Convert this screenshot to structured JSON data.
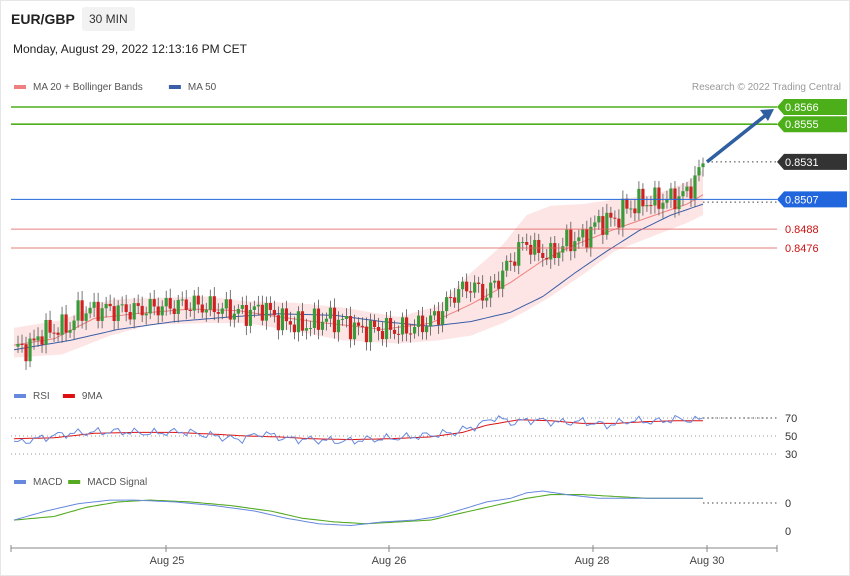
{
  "header": {
    "symbol": "EUR/GBP",
    "timeframe": "30 MIN",
    "datetime": "Monday, August 29, 2022 12:13:16 PM CET",
    "credit": "Research © 2022 Trading Central"
  },
  "colors": {
    "ma20": "#f08080",
    "bollinger_fill": "#fde0e0",
    "ma50": "#3a5ea8",
    "candle_up": "#3a9a3a",
    "candle_down": "#cc2222",
    "resistance": "#4caf1a",
    "pivot": "#2266dd",
    "support": "#e06060",
    "current": "#333333",
    "arrow": "#2f5fa0",
    "rsi": "#6688dd",
    "rsi_ma": "#dd1111",
    "macd": "#6688dd",
    "macd_signal": "#55aa22"
  },
  "chart_data": [
    {
      "type": "candlestick",
      "panel": "price",
      "legend": [
        {
          "name": "MA 20 + Bollinger Bands",
          "color": "#f08080"
        },
        {
          "name": "MA 50",
          "color": "#3a5ea8"
        }
      ],
      "x_labels": [
        "Aug 25",
        "Aug 26",
        "Aug 28",
        "Aug 30"
      ],
      "levels": [
        {
          "value": 0.8566,
          "label": "0.8566",
          "kind": "resistance"
        },
        {
          "value": 0.8555,
          "label": "0.8555",
          "kind": "resistance"
        },
        {
          "value": 0.8531,
          "label": "0.8531",
          "kind": "current"
        },
        {
          "value": 0.8507,
          "label": "0.8507",
          "kind": "pivot"
        },
        {
          "value": 0.8488,
          "label": "0.8488",
          "kind": "support"
        },
        {
          "value": 0.8476,
          "label": "0.8476",
          "kind": "support"
        }
      ],
      "ylim": [
        0.84,
        0.8566
      ],
      "close_path": [
        [
          0,
          0.8413
        ],
        [
          4,
          0.8412
        ],
        [
          6,
          0.842
        ],
        [
          10,
          0.8424
        ],
        [
          14,
          0.8426
        ],
        [
          16,
          0.8435
        ],
        [
          22,
          0.8437
        ],
        [
          30,
          0.8436
        ],
        [
          35,
          0.8438
        ],
        [
          44,
          0.844
        ],
        [
          52,
          0.8437
        ],
        [
          58,
          0.8434
        ],
        [
          62,
          0.8438
        ],
        [
          66,
          0.8431
        ],
        [
          72,
          0.8426
        ],
        [
          78,
          0.8431
        ],
        [
          82,
          0.8429
        ],
        [
          86,
          0.8424
        ],
        [
          94,
          0.8424
        ],
        [
          98,
          0.8424
        ],
        [
          102,
          0.8427
        ],
        [
          106,
          0.8433
        ],
        [
          110,
          0.8447
        ],
        [
          114,
          0.8452
        ],
        [
          118,
          0.8446
        ],
        [
          122,
          0.846
        ],
        [
          126,
          0.8475
        ],
        [
          128,
          0.848
        ],
        [
          130,
          0.8474
        ],
        [
          134,
          0.8471
        ],
        [
          138,
          0.848
        ],
        [
          142,
          0.8482
        ],
        [
          146,
          0.8493
        ],
        [
          150,
          0.8494
        ],
        [
          152,
          0.85
        ],
        [
          156,
          0.8505
        ],
        [
          160,
          0.8506
        ],
        [
          164,
          0.8507
        ],
        [
          168,
          0.8511
        ],
        [
          170,
          0.852
        ],
        [
          172,
          0.8529
        ]
      ],
      "ma20": [
        [
          0,
          0.8414
        ],
        [
          10,
          0.8418
        ],
        [
          20,
          0.8431
        ],
        [
          30,
          0.8434
        ],
        [
          44,
          0.8437
        ],
        [
          56,
          0.8436
        ],
        [
          66,
          0.8432
        ],
        [
          78,
          0.8428
        ],
        [
          92,
          0.8424
        ],
        [
          104,
          0.8428
        ],
        [
          114,
          0.844
        ],
        [
          124,
          0.8454
        ],
        [
          132,
          0.8468
        ],
        [
          140,
          0.8478
        ],
        [
          150,
          0.8488
        ],
        [
          160,
          0.8497
        ],
        [
          168,
          0.8504
        ],
        [
          172,
          0.851
        ]
      ],
      "bb_upper": [
        [
          0,
          0.8425
        ],
        [
          12,
          0.843
        ],
        [
          24,
          0.8443
        ],
        [
          34,
          0.8444
        ],
        [
          48,
          0.8445
        ],
        [
          58,
          0.8442
        ],
        [
          70,
          0.8441
        ],
        [
          82,
          0.8438
        ],
        [
          96,
          0.8432
        ],
        [
          106,
          0.8439
        ],
        [
          114,
          0.846
        ],
        [
          122,
          0.8478
        ],
        [
          128,
          0.8497
        ],
        [
          134,
          0.8503
        ],
        [
          142,
          0.8504
        ],
        [
          150,
          0.8507
        ],
        [
          160,
          0.851
        ],
        [
          168,
          0.8518
        ],
        [
          172,
          0.8526
        ]
      ],
      "bb_lower": [
        [
          0,
          0.8406
        ],
        [
          12,
          0.8408
        ],
        [
          24,
          0.842
        ],
        [
          34,
          0.8427
        ],
        [
          48,
          0.8428
        ],
        [
          58,
          0.8428
        ],
        [
          70,
          0.8423
        ],
        [
          82,
          0.8417
        ],
        [
          96,
          0.8415
        ],
        [
          106,
          0.8417
        ],
        [
          114,
          0.842
        ],
        [
          122,
          0.8428
        ],
        [
          128,
          0.8436
        ],
        [
          134,
          0.8445
        ],
        [
          142,
          0.8459
        ],
        [
          150,
          0.8474
        ],
        [
          160,
          0.8484
        ],
        [
          168,
          0.8492
        ],
        [
          172,
          0.8497
        ]
      ],
      "ma50": [
        [
          0,
          0.8411
        ],
        [
          14,
          0.8417
        ],
        [
          26,
          0.8424
        ],
        [
          40,
          0.8429
        ],
        [
          54,
          0.8432
        ],
        [
          66,
          0.8434
        ],
        [
          80,
          0.8433
        ],
        [
          92,
          0.8429
        ],
        [
          104,
          0.8426
        ],
        [
          114,
          0.8429
        ],
        [
          124,
          0.8435
        ],
        [
          132,
          0.8445
        ],
        [
          140,
          0.846
        ],
        [
          148,
          0.8474
        ],
        [
          156,
          0.8487
        ],
        [
          164,
          0.8497
        ],
        [
          172,
          0.8504
        ]
      ]
    },
    {
      "type": "line",
      "panel": "rsi",
      "legend": [
        {
          "name": "RSI",
          "color": "#6688dd"
        },
        {
          "name": "9MA",
          "color": "#dd1111"
        }
      ],
      "levels": [
        70,
        50,
        30
      ],
      "ylim": [
        25,
        75
      ],
      "rsi": [
        [
          0,
          42
        ],
        [
          6,
          47
        ],
        [
          12,
          52
        ],
        [
          18,
          54
        ],
        [
          26,
          55
        ],
        [
          34,
          53
        ],
        [
          42,
          55
        ],
        [
          50,
          50
        ],
        [
          56,
          46
        ],
        [
          62,
          53
        ],
        [
          68,
          47
        ],
        [
          74,
          46
        ],
        [
          82,
          44
        ],
        [
          88,
          46
        ],
        [
          96,
          48
        ],
        [
          104,
          51
        ],
        [
          110,
          54
        ],
        [
          116,
          62
        ],
        [
          120,
          71
        ],
        [
          124,
          65
        ],
        [
          130,
          68
        ],
        [
          136,
          65
        ],
        [
          142,
          66
        ],
        [
          148,
          62
        ],
        [
          154,
          67
        ],
        [
          160,
          66
        ],
        [
          166,
          69
        ],
        [
          170,
          67
        ],
        [
          172,
          70
        ]
      ],
      "ma": [
        [
          0,
          47
        ],
        [
          10,
          48
        ],
        [
          20,
          53
        ],
        [
          30,
          54
        ],
        [
          40,
          54
        ],
        [
          50,
          52
        ],
        [
          58,
          50
        ],
        [
          66,
          49
        ],
        [
          74,
          47
        ],
        [
          84,
          46
        ],
        [
          94,
          47
        ],
        [
          104,
          49
        ],
        [
          112,
          54
        ],
        [
          118,
          62
        ],
        [
          126,
          68
        ],
        [
          134,
          67
        ],
        [
          142,
          64
        ],
        [
          150,
          64
        ],
        [
          158,
          66
        ],
        [
          166,
          67
        ],
        [
          172,
          67
        ]
      ]
    },
    {
      "type": "line",
      "panel": "macd",
      "legend": [
        {
          "name": "MACD",
          "color": "#6688dd"
        },
        {
          "name": "MACD Signal",
          "color": "#55aa22"
        }
      ],
      "y_labels": [
        "0",
        "0"
      ],
      "ylim": [
        -0.001,
        0.0012
      ],
      "macd": [
        [
          0,
          -0.0004
        ],
        [
          8,
          0.0001
        ],
        [
          16,
          0.0005
        ],
        [
          24,
          0.0007
        ],
        [
          30,
          0.0007
        ],
        [
          40,
          0.0006
        ],
        [
          50,
          0.0004
        ],
        [
          60,
          0.0001
        ],
        [
          68,
          -0.0003
        ],
        [
          76,
          -0.0006
        ],
        [
          84,
          -0.0007
        ],
        [
          92,
          -0.0005
        ],
        [
          100,
          -0.0004
        ],
        [
          106,
          -0.0002
        ],
        [
          112,
          0.0002
        ],
        [
          118,
          0.0006
        ],
        [
          124,
          0.0008
        ],
        [
          128,
          0.0011
        ],
        [
          132,
          0.0012
        ],
        [
          138,
          0.001
        ],
        [
          146,
          0.0008
        ],
        [
          154,
          0.0008
        ],
        [
          162,
          0.0008
        ],
        [
          168,
          0.0008
        ],
        [
          172,
          0.0008
        ]
      ],
      "signal": [
        [
          0,
          -0.0004
        ],
        [
          10,
          -0.0002
        ],
        [
          18,
          0.0003
        ],
        [
          26,
          0.0006
        ],
        [
          34,
          0.0007
        ],
        [
          44,
          0.0006
        ],
        [
          54,
          0.0004
        ],
        [
          64,
          0.0001
        ],
        [
          72,
          -0.0003
        ],
        [
          80,
          -0.0005
        ],
        [
          88,
          -0.0006
        ],
        [
          96,
          -0.0005
        ],
        [
          104,
          -0.0004
        ],
        [
          112,
          0.0
        ],
        [
          120,
          0.0004
        ],
        [
          128,
          0.0008
        ],
        [
          134,
          0.001
        ],
        [
          142,
          0.001
        ],
        [
          150,
          0.0009
        ],
        [
          158,
          0.0008
        ],
        [
          166,
          0.0008
        ],
        [
          172,
          0.0008
        ]
      ]
    }
  ]
}
